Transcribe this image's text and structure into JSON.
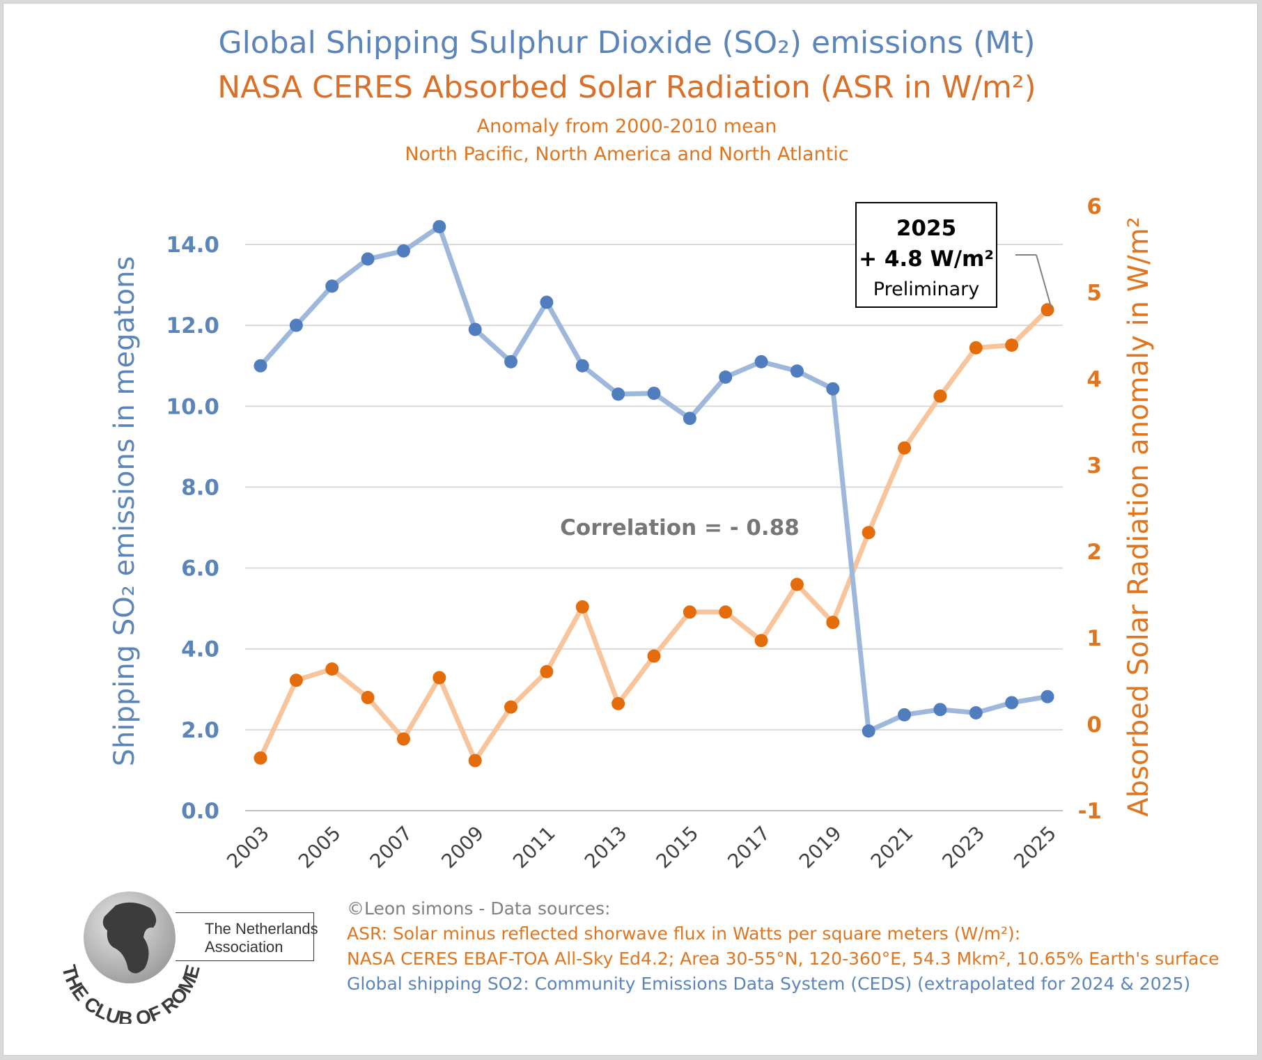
{
  "title_line1": "Global Shipping Sulphur Dioxide (SO₂) emissions (Mt)",
  "title_line2": "NASA CERES Absorbed Solar Radiation (ASR in W/m²)",
  "subtitle_line1": "Anomaly from 2000-2010 mean",
  "subtitle_line2": "North Pacific, North America and North Atlantic",
  "annotation": {
    "year": "2025",
    "value": "+ 4.8 W/m²",
    "note": "Preliminary"
  },
  "correlation_text": "Correlation = - 0.88",
  "credits": [
    "©Leon simons - Data sources:",
    "ASR: Solar minus reflected shorwave flux in Watts per square meters (W/m²):",
    "NASA CERES EBAF-TOA All-Sky Ed4.2; Area 30-55°N, 120-360°E, 54.3 Mkm², 10.65% Earth's surface",
    "Global shipping SO2: Community Emissions Data System (CEDS) (extrapolated for 2024 & 2025)"
  ],
  "logo": {
    "name": "THE CLUB OF ROME",
    "subtitle_line1": "The Netherlands",
    "subtitle_line2": "Association"
  },
  "colors": {
    "so2_line": "#9db8da",
    "so2_point": "#4f7dbd",
    "so2_text": "#5b84b8",
    "asr_line": "#f8c49b",
    "asr_point": "#e46c0a",
    "asr_text": "#e0751f",
    "grid": "#d9d9d9",
    "annotation_text": "#7f7f7f"
  },
  "chart_data": {
    "type": "line",
    "x": [
      2003,
      2004,
      2005,
      2006,
      2007,
      2008,
      2009,
      2010,
      2011,
      2012,
      2013,
      2014,
      2015,
      2016,
      2017,
      2018,
      2019,
      2020,
      2021,
      2022,
      2023,
      2024,
      2025
    ],
    "x_tick_labels": [
      "2003",
      "2005",
      "2007",
      "2009",
      "2011",
      "2013",
      "2015",
      "2017",
      "2019",
      "2021",
      "2023",
      "2025"
    ],
    "series": [
      {
        "axis": "left",
        "values": [
          11.0,
          12.0,
          12.97,
          13.64,
          13.84,
          14.44,
          11.9,
          11.1,
          12.57,
          11.0,
          10.3,
          10.32,
          9.7,
          10.72,
          11.1,
          10.87,
          10.43,
          1.97,
          2.37,
          2.5,
          2.42,
          2.67,
          2.82
        ]
      },
      {
        "axis": "right",
        "values": [
          -0.39,
          0.51,
          0.64,
          0.31,
          -0.17,
          0.54,
          -0.42,
          0.2,
          0.61,
          1.36,
          0.24,
          0.79,
          1.3,
          1.3,
          0.97,
          1.62,
          1.18,
          2.22,
          3.2,
          3.8,
          4.36,
          4.39,
          4.8
        ]
      }
    ],
    "y_left": {
      "label": "Shipping SO₂ emissions in megatons",
      "range": [
        0,
        14
      ],
      "ticks": [
        "0.0",
        "2.0",
        "4.0",
        "6.0",
        "8.0",
        "10.0",
        "12.0",
        "14.0"
      ]
    },
    "y_right": {
      "label": "Absorbed Solar Radiation anomaly in W/m²",
      "range": [
        -1,
        6
      ],
      "ticks": [
        "-1",
        "0",
        "1",
        "2",
        "3",
        "4",
        "5",
        "6"
      ]
    },
    "grid": "horizontal",
    "legend": "none"
  }
}
